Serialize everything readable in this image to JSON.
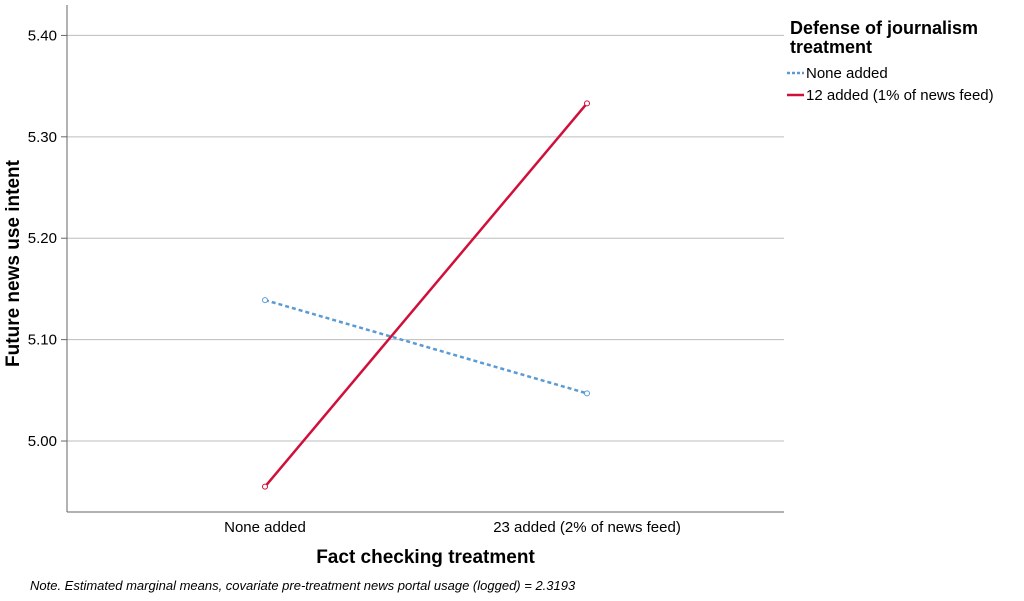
{
  "chart_data": {
    "type": "line",
    "title": "",
    "xlabel": "Fact checking treatment",
    "ylabel": "Future news use intent",
    "categories": [
      "None added",
      "23 added (2% of news feed)"
    ],
    "ylim": [
      4.93,
      5.43
    ],
    "yticks": [
      "5.00",
      "5.10",
      "5.20",
      "5.30",
      "5.40"
    ],
    "grid": true,
    "legend": {
      "title": "Defense of journalism treatment",
      "placement": "right"
    },
    "series": [
      {
        "name": "None added",
        "values": [
          5.139,
          5.047
        ],
        "color": "#5b9bd5",
        "style": "dotted"
      },
      {
        "name": "12 added (1% of news feed)",
        "values": [
          4.955,
          5.333
        ],
        "color": "#d0103a",
        "style": "solid"
      }
    ],
    "note": "Note. Estimated marginal means, covariate pre-treatment news portal usage (logged) = 2.3193"
  }
}
